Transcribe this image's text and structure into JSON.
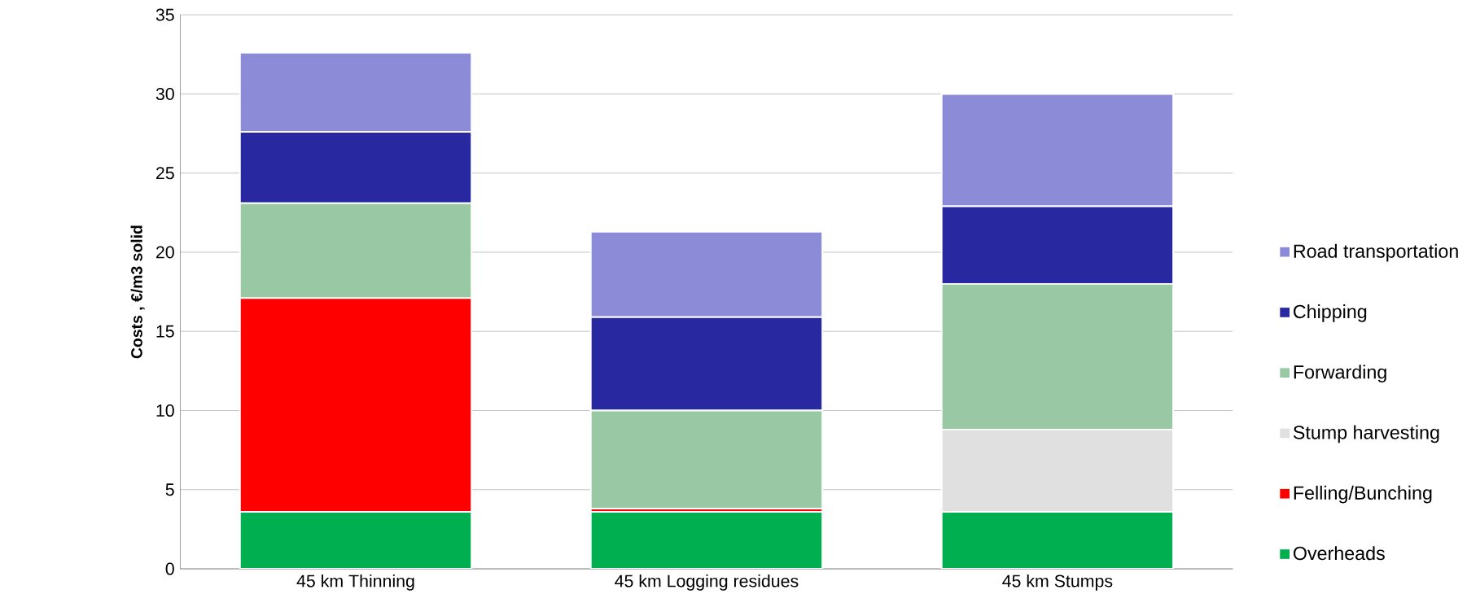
{
  "chart_data": {
    "type": "bar",
    "stacked": true,
    "ylabel": "Costs , €/m3 solid",
    "categories": [
      "45 km Thinning",
      "45 km Logging residues",
      "45 km Stumps"
    ],
    "series": [
      {
        "name": "Overheads",
        "color": "#00b050",
        "values": [
          3.6,
          3.6,
          3.6
        ]
      },
      {
        "name": "Felling/Bunching",
        "color": "#ff0000",
        "values": [
          13.5,
          0.2,
          0
        ]
      },
      {
        "name": "Stump harvesting",
        "color": "#e0e0e0",
        "values": [
          0,
          0,
          5.2
        ]
      },
      {
        "name": "Forwarding",
        "color": "#99c9a4",
        "values": [
          6.0,
          6.2,
          9.2
        ]
      },
      {
        "name": "Chipping",
        "color": "#2828a0",
        "values": [
          4.5,
          5.9,
          4.9
        ]
      },
      {
        "name": "Road transportation",
        "color": "#8b8bd8",
        "values": [
          5.0,
          5.4,
          7.1
        ]
      }
    ],
    "ylim": [
      0,
      35
    ],
    "yticks": [
      0,
      5,
      10,
      15,
      20,
      25,
      30,
      35
    ],
    "grid": "y",
    "legend": "right"
  }
}
